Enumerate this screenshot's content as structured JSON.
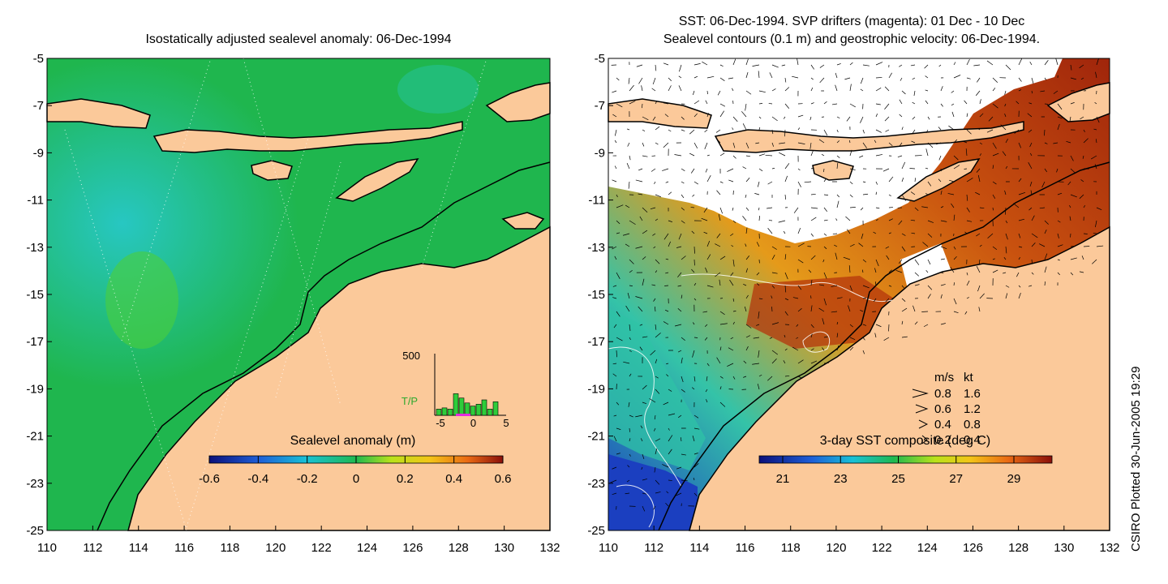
{
  "left_panel": {
    "title": "Isostatically adjusted sealevel anomaly: 06-Dec-1994",
    "colorbar_title": "Sealevel anomaly (m)",
    "colorbar_ticks": [
      "-0.6",
      "-0.4",
      "-0.2",
      "0",
      "0.2",
      "0.4",
      "0.6"
    ],
    "inset": {
      "y_max_label": "500",
      "series_label": "T/P",
      "x_ticks": [
        "-5",
        "0",
        "5"
      ],
      "bars": [
        0.1,
        0.12,
        0.1,
        0.35,
        0.28,
        0.2,
        0.15,
        0.18,
        0.25,
        0.1,
        0.22
      ]
    }
  },
  "right_panel": {
    "title_line1": "SST: 06-Dec-1994. SVP drifters (magenta): 01 Dec - 10 Dec",
    "title_line2": "Sealevel contours (0.1 m) and geostrophic velocity: 06-Dec-1994.",
    "colorbar_title": "3-day SST composite (deg C)",
    "colorbar_ticks": [
      "21",
      "23",
      "25",
      "27",
      "29"
    ],
    "velocity_legend": {
      "header_ms": "m/s",
      "header_kt": "kt",
      "rows": [
        {
          "ms": "0.8",
          "kt": "1.6"
        },
        {
          "ms": "0.6",
          "kt": "1.2"
        },
        {
          "ms": "0.4",
          "kt": "0.8"
        },
        {
          "ms": "0.2",
          "kt": "0.4"
        }
      ]
    }
  },
  "axes": {
    "x_ticks": [
      "110",
      "112",
      "114",
      "116",
      "118",
      "120",
      "122",
      "124",
      "126",
      "128",
      "130",
      "132"
    ],
    "y_ticks": [
      "-5",
      "-7",
      "-9",
      "-11",
      "-13",
      "-15",
      "-17",
      "-19",
      "-21",
      "-23",
      "-25"
    ]
  },
  "side_note": "CSIRO Plotted 30-Jun-2005 19:29",
  "colors": {
    "land": "#fbc99a",
    "sea_anomaly": "#22b64f",
    "sst_warm": "#c0460e",
    "white_cloud": "#ffffff"
  }
}
